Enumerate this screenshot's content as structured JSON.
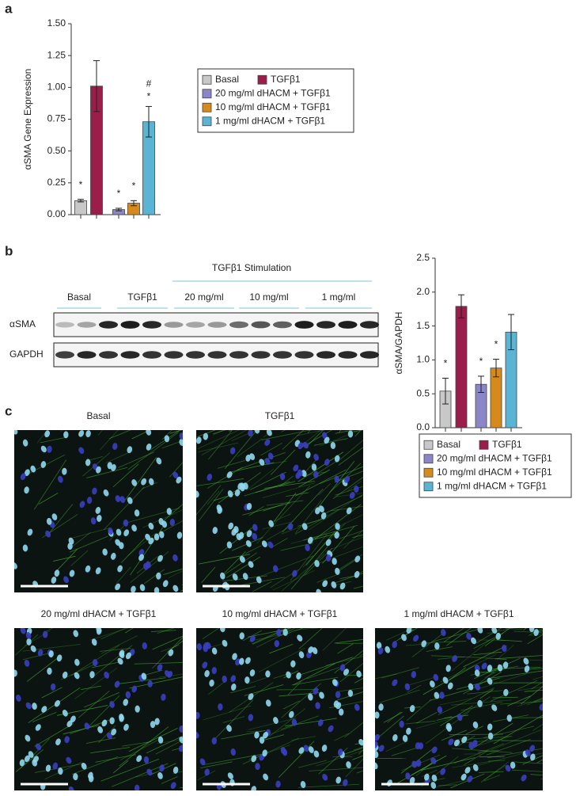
{
  "panels": {
    "a": "a",
    "b": "b",
    "c": "c"
  },
  "chart_data": [
    {
      "type": "bar",
      "ylabel": "αSMA Gene Expression",
      "categories": [
        null,
        null,
        null,
        null,
        null
      ],
      "values": [
        0.11,
        1.01,
        0.04,
        0.09,
        0.73
      ],
      "errors": [
        0.01,
        0.2,
        0.01,
        0.02,
        0.12
      ],
      "colors": [
        "#c8c8c8",
        "#9b1d4a",
        "#8b86c8",
        "#d68a1c",
        "#5ab4d4"
      ],
      "legend_labels": [
        "Basal",
        "TGFβ1",
        "20 mg/ml dHACM + TGFβ1",
        "10 mg/ml dHACM + TGFβ1",
        "1 mg/ml dHACM + TGFβ1"
      ],
      "annotations": [
        {
          "text": "*",
          "index": 0
        },
        {
          "text": "*",
          "index": 2
        },
        {
          "text": "*",
          "index": 3
        },
        {
          "text": "*",
          "index": 4
        },
        {
          "text": "#",
          "index": 4
        }
      ],
      "ylim": [
        0,
        1.5
      ],
      "yticks": [
        {
          "value": 0,
          "label": "0.00"
        },
        {
          "value": 0.25,
          "label": "0.25"
        },
        {
          "value": 0.5,
          "label": "0.50"
        },
        {
          "value": 0.75,
          "label": "0.75"
        },
        {
          "value": 1,
          "label": "1.00"
        },
        {
          "value": 1.25,
          "label": "1.25"
        },
        {
          "value": 1.5,
          "label": "1.50"
        }
      ]
    },
    {
      "type": "bar",
      "ylabel": "αSMA/GAPDH",
      "categories": [
        null,
        null,
        null,
        null,
        null
      ],
      "values": [
        0.54,
        1.79,
        0.64,
        0.88,
        1.41
      ],
      "errors": [
        0.19,
        0.17,
        0.12,
        0.13,
        0.26
      ],
      "colors": [
        "#c8c8c8",
        "#9b1d4a",
        "#8b86c8",
        "#d68a1c",
        "#5ab4d4"
      ],
      "legend_labels": [
        "Basal",
        "TGFβ1",
        "20 mg/ml dHACM + TGFβ1",
        "10 mg/ml dHACM + TGFβ1",
        "1 mg/ml dHACM + TGFβ1"
      ],
      "annotations": [
        {
          "text": "*",
          "index": 0
        },
        {
          "text": "*",
          "index": 2
        },
        {
          "text": "*",
          "index": 3
        }
      ],
      "ylim": [
        0,
        2.5
      ],
      "yticks": [
        {
          "value": 0,
          "label": "0.0"
        },
        {
          "value": 0.5,
          "label": "0.5"
        },
        {
          "value": 1,
          "label": "1.0"
        },
        {
          "value": 1.5,
          "label": "1.5"
        },
        {
          "value": 2,
          "label": "2.0"
        },
        {
          "value": 2.5,
          "label": "2.5"
        }
      ]
    }
  ],
  "blot": {
    "stimulation": "TGFβ1 Stimulation",
    "groups": [
      "Basal",
      "TGFβ1",
      "20 mg/ml",
      "10 mg/ml",
      "1 mg/ml"
    ],
    "rows": [
      "αSMA",
      "GAPDH"
    ]
  },
  "images": {
    "captions": [
      "Basal",
      "TGFβ1",
      "20 mg/ml dHACM + TGFβ1",
      "10 mg/ml dHACM + TGFβ1",
      "1 mg/ml dHACM + TGFβ1"
    ]
  }
}
